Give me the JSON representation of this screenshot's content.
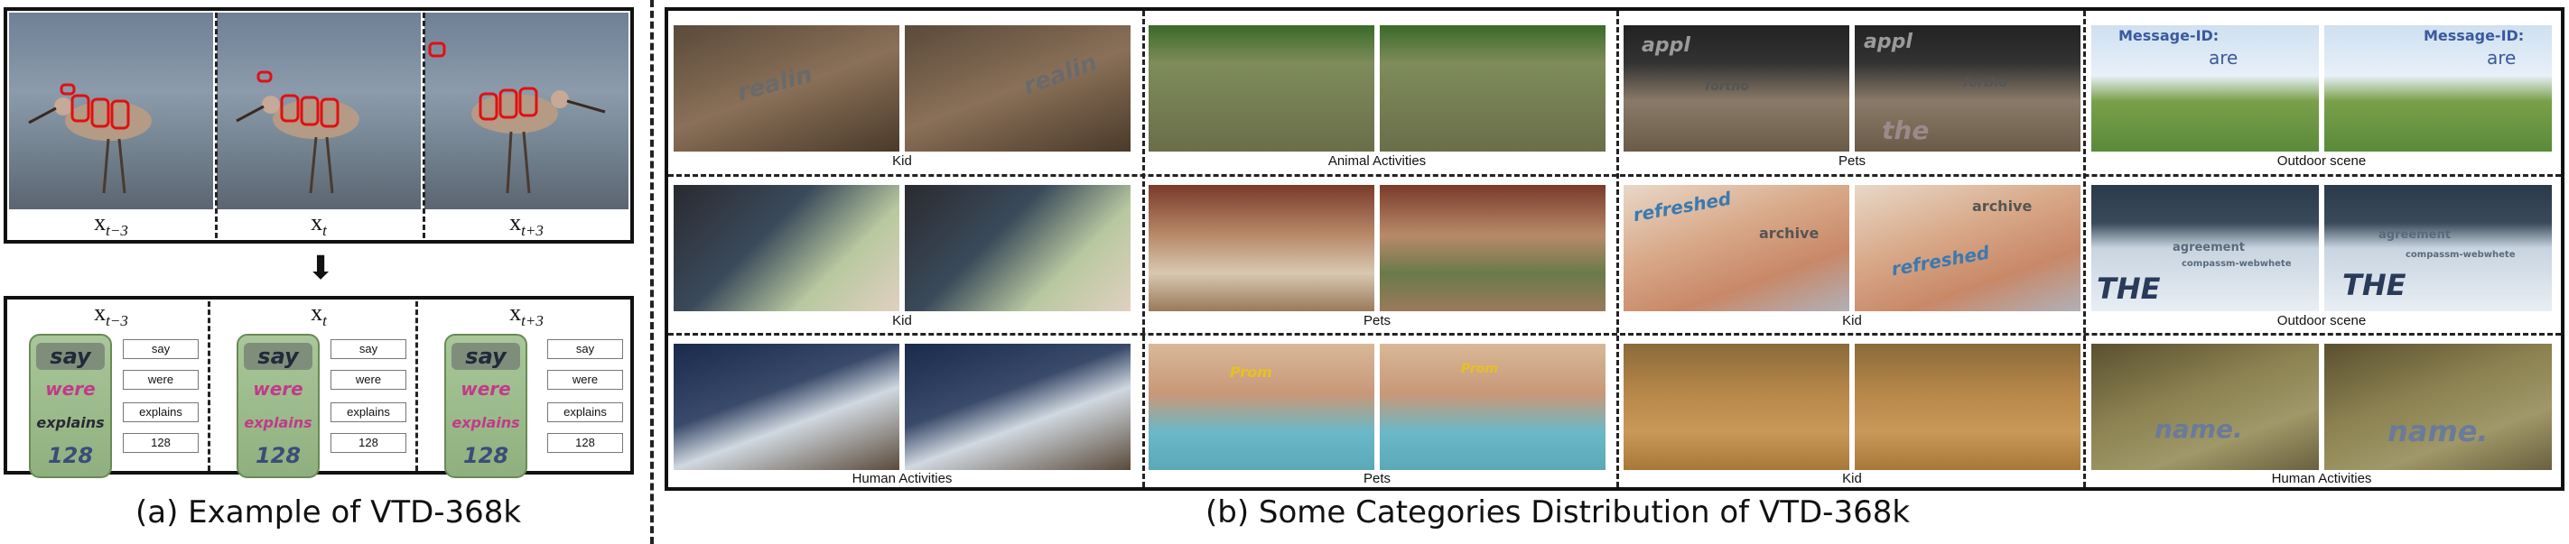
{
  "panel_a": {
    "caption": "(a) Example of VTD-368k",
    "frame_labels": [
      {
        "base": "x",
        "sub": "t−3"
      },
      {
        "base": "x",
        "sub": "t"
      },
      {
        "base": "x",
        "sub": "t+3"
      }
    ],
    "arrow": "⬇",
    "crops": [
      {
        "words": [
          "say",
          "were",
          "explains",
          "128"
        ]
      },
      {
        "words": [
          "say",
          "were",
          "explains",
          "128"
        ]
      },
      {
        "words": [
          "say",
          "were",
          "explains",
          "128"
        ]
      }
    ]
  },
  "panel_b": {
    "caption": "(b) Some Categories Distribution of VTD-368k",
    "rows": [
      [
        "Kid",
        "Animal Activities",
        "Pets",
        "Outdoor scene"
      ],
      [
        "Kid",
        "Pets",
        "Kid",
        "Outdoor scene"
      ],
      [
        "Human Activities",
        "Pets",
        "Kid",
        "Human Activities"
      ]
    ],
    "overlay_words": {
      "r0c0": "realin",
      "r0c2a": "appl",
      "r0c2b": "fortho",
      "r0c2c": "the",
      "r0c3a": "Message-ID:",
      "r0c3b": "are",
      "r1c2a": "refreshed",
      "r1c2b": "archive",
      "r1c3a": "agreement",
      "r1c3b": "compassm-webwhete",
      "r1c3c": "THE",
      "r2c1": "Prom",
      "r2c3": "name."
    }
  }
}
